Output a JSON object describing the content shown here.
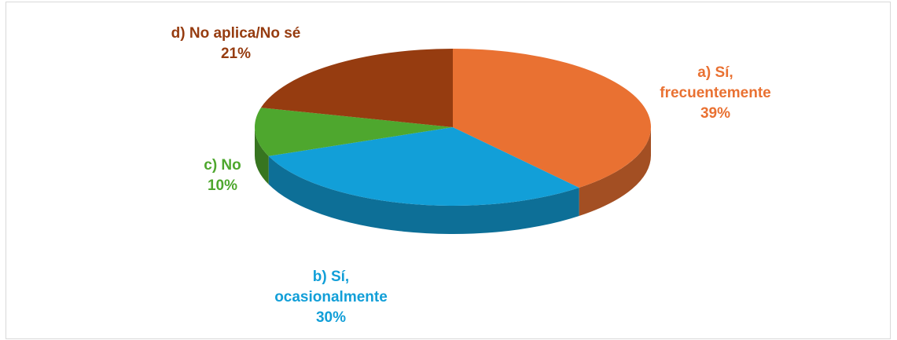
{
  "chart_data": {
    "type": "pie3d",
    "categories": [
      "a) Sí, frecuentemente",
      "b) Sí, ocasionalmente",
      "c) No",
      "d) No aplica/No sé"
    ],
    "values": [
      39,
      30,
      10,
      21
    ],
    "value_labels": [
      "39%",
      "30%",
      "10%",
      "21%"
    ],
    "colors": [
      "#e97132",
      "#129fd8",
      "#4ea72e",
      "#963c10"
    ]
  }
}
